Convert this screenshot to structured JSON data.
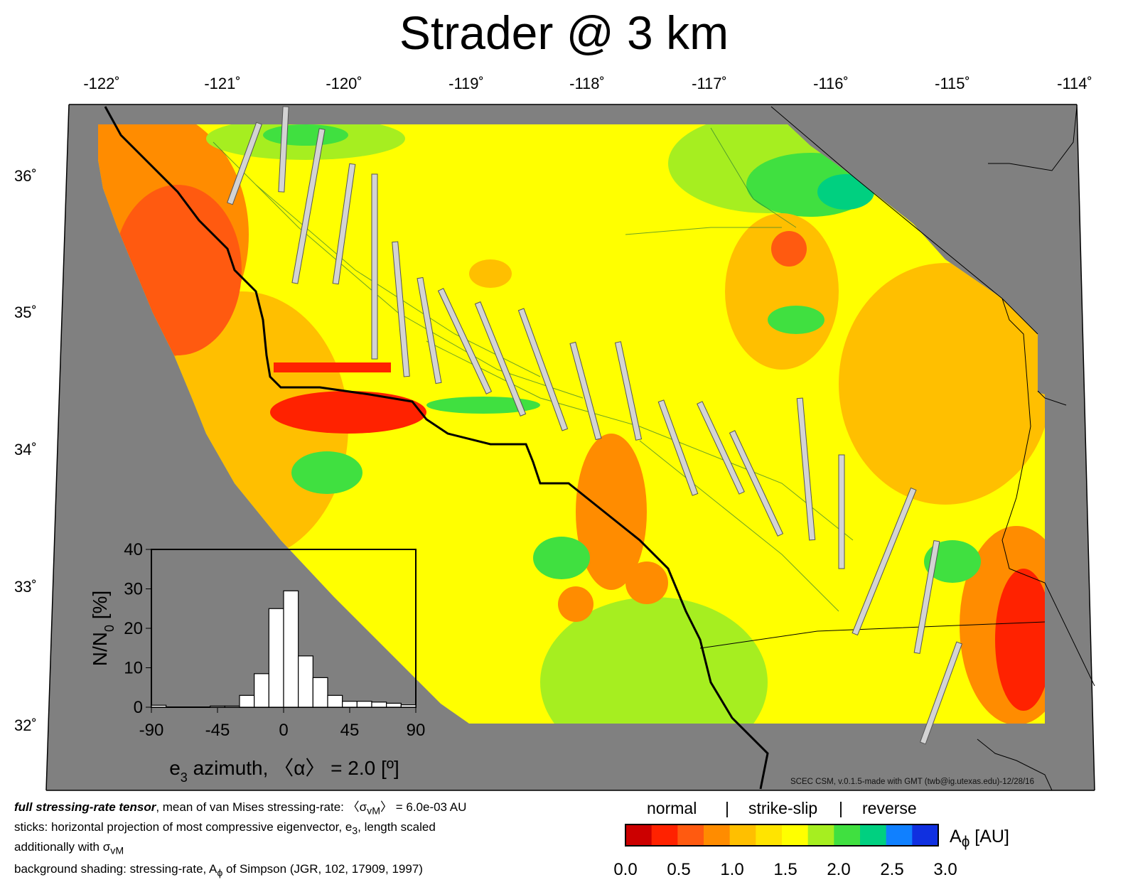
{
  "title": "Strader @ 3 km",
  "map": {
    "lon_ticks": [
      "-122˚",
      "-121˚",
      "-120˚",
      "-119˚",
      "-118˚",
      "-117˚",
      "-116˚",
      "-115˚",
      "-114˚"
    ],
    "lat_ticks": [
      "36˚",
      "35˚",
      "34˚",
      "33˚",
      "32˚"
    ],
    "credit": "SCEC CSM, v.0.1.5-made with GMT (twb@ig.utexas.edu)-12/28/16",
    "colors": {
      "land_mask": "#808080",
      "coastline": "#000000",
      "fault_traces": "#2e7d32",
      "sticks": "#d3d3d3"
    }
  },
  "colorbar": {
    "regimes": [
      "normal",
      "|",
      "strike-slip",
      "|",
      "reverse"
    ],
    "title_main": "A",
    "title_sub": "ϕ",
    "title_unit": " [AU]",
    "ticks": [
      "0.0",
      "0.5",
      "1.0",
      "1.5",
      "2.0",
      "2.5",
      "3.0"
    ],
    "range": [
      0.0,
      3.0
    ],
    "colors": [
      "#cc0000",
      "#ff2200",
      "#ff5a10",
      "#ff8c00",
      "#ffbf00",
      "#ffe400",
      "#ffff00",
      "#a6ee20",
      "#40e040",
      "#00d080",
      "#1080ff",
      "#1030e0"
    ]
  },
  "histogram": {
    "ylabel_main": "N/N",
    "ylabel_sub": "0",
    "ylabel_unit": " [%]",
    "xlabel_main": "e",
    "xlabel_sub": "3",
    "xlabel_rest": " azimuth, 〈α〉 = 2.0 [º]",
    "x_ticks": [
      "-90",
      "-45",
      "0",
      "45",
      "90"
    ],
    "y_ticks": [
      "0",
      "10",
      "20",
      "30",
      "40"
    ]
  },
  "chart_data": {
    "type": "bar",
    "title": "",
    "xlabel": "e3 azimuth, 〈α〉 = 2.0 [º]",
    "ylabel": "N/N0 [%]",
    "bin_edges": [
      -90,
      -80,
      -70,
      -60,
      -50,
      -40,
      -30,
      -20,
      -10,
      0,
      10,
      20,
      30,
      40,
      50,
      60,
      70,
      80,
      90
    ],
    "values": [
      0.5,
      0,
      0,
      0,
      0.3,
      0.3,
      3,
      8.5,
      25,
      29.5,
      13,
      7.5,
      3,
      1.5,
      1.5,
      1.3,
      1,
      0.6
    ],
    "xlim": [
      -90,
      90
    ],
    "ylim": [
      0,
      40
    ],
    "bar_color": "#ffffff"
  },
  "caption": {
    "line1_bold": "full stressing-rate tensor",
    "line1_text": ", mean of van Mises stressing-rate: ",
    "line1_sym": "〈σ",
    "line1_sub": "vM",
    "line1_end": "〉 = 6.0e-03 AU",
    "line2": "sticks: horizontal projection of most compressive eigenvector, e",
    "line2_sub": "3",
    "line2_end": ", length scaled",
    "line3": "additionally with σ",
    "line3_sub": "vM",
    "line4": "background shading: stressing-rate, A",
    "line4_sub": "ϕ",
    "line4_end": " of Simpson (JGR, 102, 17909, 1997)"
  }
}
